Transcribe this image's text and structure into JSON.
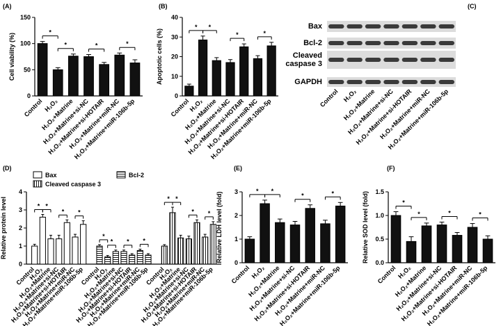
{
  "chart_data": [
    {
      "type": "bar",
      "label": "(A)",
      "ylabel": "Cell viability (%)",
      "categories": [
        "Control",
        "H₂O₂",
        "H₂O₂+Matrine",
        "H₂O₂+Matrine+si-NC",
        "H₂O₂+Matrine+si-HOTAIR",
        "H₂O₂+Matrine+miR-NC",
        "H₂O₂+Matrine+miR-106b-5p"
      ],
      "values": [
        100,
        50,
        76,
        75,
        60,
        78,
        63
      ],
      "errors": [
        4,
        4,
        4,
        4,
        4,
        4,
        6
      ],
      "color": "#111111",
      "ylim": [
        0,
        150
      ],
      "yticks": [
        0,
        50,
        100,
        150
      ],
      "annotations": [
        "*",
        "*",
        "*",
        "*"
      ]
    },
    {
      "type": "bar",
      "label": "(B)",
      "ylabel": "Apoptotic cells (%)",
      "categories": [
        "Control",
        "H₂O₂",
        "H₂O₂+Matrine",
        "H₂O₂+Matrine+si-NC",
        "H₂O₂+Matrine+si-HOTAIR",
        "H₂O₂+Matrine+miR-NC",
        "H₂O₂+Matrine+miR-106b-5p"
      ],
      "values": [
        5,
        28.5,
        18,
        17,
        25,
        19,
        25.5
      ],
      "errors": [
        1,
        2,
        1.5,
        1.5,
        1.5,
        1.5,
        1.8
      ],
      "color": "#111111",
      "ylim": [
        0,
        40
      ],
      "yticks": [
        0,
        10,
        20,
        30,
        40
      ],
      "annotations": [
        "*",
        "*",
        "*",
        "*"
      ]
    },
    {
      "type": "blot",
      "label": "(C)",
      "rows": [
        "Bax",
        "Bcl-2",
        "Cleaved caspase 3",
        "GAPDH"
      ],
      "categories": [
        "Control",
        "H₂O₂",
        "H₂O₂+Matrine",
        "H₂O₂+Matrine+si-NC",
        "H₂O₂+Matrine+si-HOTAIR",
        "H₂O₂+Matrine+miR-NC",
        "H₂O₂+Matrine+miR-106b-5p"
      ]
    },
    {
      "type": "grouped-bar",
      "label": "(D)",
      "ylabel": "Relative protein level",
      "categories": [
        "Control",
        "H₂O₂",
        "H₂O₂+Matrine",
        "H₂O₂+Matrine+si-NC",
        "H₂O₂+Matrine+si-HOTAIR",
        "H₂O₂+Matrine+miR-NC",
        "H₂O₂+Matrine+miR-106b-5p"
      ],
      "series": [
        {
          "name": "Bax",
          "pattern": "none",
          "values": [
            1,
            2.6,
            1.4,
            1.4,
            2.3,
            1.5,
            2.2
          ],
          "errors": [
            0.1,
            0.15,
            0.2,
            0.2,
            0.15,
            0.15,
            0.2
          ]
        },
        {
          "name": "Bcl-2",
          "pattern": "horizontal",
          "values": [
            1,
            0.4,
            0.7,
            0.7,
            0.5,
            0.75,
            0.5
          ],
          "errors": [
            0.08,
            0.08,
            0.08,
            0.08,
            0.08,
            0.08,
            0.08
          ]
        },
        {
          "name": "Cleaved caspase 3",
          "pattern": "vertical",
          "values": [
            1,
            2.85,
            1.45,
            1.4,
            2.3,
            1.5,
            2.2
          ],
          "errors": [
            0.08,
            0.3,
            0.15,
            0.15,
            0.15,
            0.15,
            0.15
          ]
        }
      ],
      "ylim": [
        0,
        4
      ],
      "yticks": [
        0,
        1,
        2,
        3,
        4
      ],
      "annotations": [
        "*",
        "*",
        "*",
        "*",
        "*",
        "*",
        "*",
        "*",
        "*",
        "*",
        "*",
        "*"
      ]
    },
    {
      "type": "bar",
      "label": "(E)",
      "ylabel": "Relative LDH level (fold)",
      "categories": [
        "Control",
        "H₂O₂",
        "H₂O₂+Matrine",
        "H₂O₂+Matrine+si-NC",
        "H₂O₂+Matrine+si-HOTAIR",
        "H₂O₂+Matrine+miR-NC",
        "H₂O₂+Matrine+miR-106b-5p"
      ],
      "values": [
        1,
        2.5,
        1.7,
        1.6,
        2.3,
        1.65,
        2.4
      ],
      "errors": [
        0.1,
        0.15,
        0.15,
        0.15,
        0.15,
        0.15,
        0.15
      ],
      "color": "#111111",
      "ylim": [
        0,
        3
      ],
      "yticks": [
        0,
        1,
        2,
        3
      ],
      "annotations": [
        "*",
        "*",
        "*",
        "*"
      ]
    },
    {
      "type": "bar",
      "label": "(F)",
      "ylabel": "Relative SOD level (fold)",
      "categories": [
        "Control",
        "H₂O₂",
        "H₂O₂+Matrine",
        "H₂O₂+Matrine+si-NC",
        "H₂O₂+Matrine+si-HOTAIR",
        "H₂O₂+Matrine+miR-NC",
        "H₂O₂+Matrine+miR-106b-5p"
      ],
      "values": [
        1.0,
        0.45,
        0.78,
        0.8,
        0.58,
        0.75,
        0.5
      ],
      "errors": [
        0.08,
        0.1,
        0.06,
        0.06,
        0.06,
        0.08,
        0.07
      ],
      "color": "#111111",
      "ylim": [
        0,
        1.5
      ],
      "yticks": [
        {
          "value": 0,
          "label": "0.0"
        },
        0.5,
        {
          "value": 1,
          "label": "1.0"
        },
        1.5
      ],
      "annotations": [
        "*",
        "*",
        "*",
        "*"
      ]
    }
  ]
}
